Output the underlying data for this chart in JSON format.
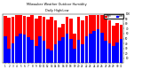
{
  "title": "Milwaukee Weather Outdoor Humidity",
  "subtitle": "Daily High/Low",
  "high_color": "#FF0000",
  "low_color": "#0000FF",
  "background_color": "#FFFFFF",
  "ylim": [
    0,
    100
  ],
  "yticks": [
    10,
    20,
    30,
    40,
    50,
    60,
    70,
    80,
    90,
    100
  ],
  "dates": [
    "1",
    "2",
    "3",
    "4",
    "5",
    "6",
    "7",
    "8",
    "9",
    "10",
    "11",
    "12",
    "13",
    "14",
    "15",
    "16",
    "17",
    "18",
    "19",
    "20",
    "21",
    "22",
    "23",
    "24",
    "25",
    "26",
    "27",
    "28",
    "29",
    "30",
    "31"
  ],
  "highs": [
    95,
    92,
    94,
    97,
    97,
    96,
    94,
    97,
    91,
    95,
    94,
    88,
    94,
    86,
    72,
    80,
    94,
    91,
    60,
    94,
    86,
    96,
    97,
    97,
    97,
    97,
    91,
    86,
    76,
    81,
    78
  ],
  "lows": [
    55,
    30,
    40,
    55,
    60,
    58,
    52,
    48,
    35,
    55,
    45,
    30,
    25,
    38,
    45,
    52,
    60,
    50,
    30,
    48,
    38,
    55,
    60,
    65,
    68,
    62,
    45,
    40,
    35,
    42,
    50
  ]
}
